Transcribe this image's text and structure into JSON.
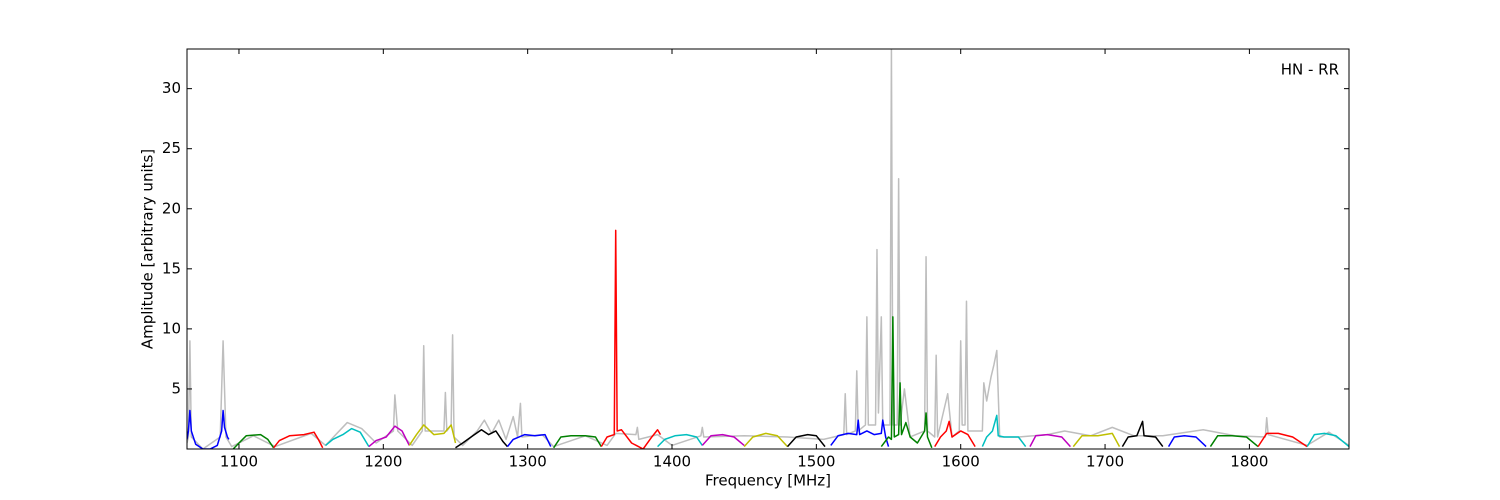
{
  "chart_data": {
    "type": "line",
    "xlabel": "Frequency [MHz]",
    "ylabel": "Amplitude [arbitrary units]",
    "annotation": "HN - RR",
    "xlim": [
      1064,
      1869
    ],
    "ylim": [
      0,
      33.3
    ],
    "xticks": [
      1100,
      1200,
      1300,
      1400,
      1500,
      1600,
      1700,
      1800
    ],
    "yticks": [
      5,
      10,
      15,
      20,
      25,
      30
    ],
    "series": [
      {
        "color": "#bebebe",
        "x": [
          1064,
          1065,
          1066,
          1067,
          1075,
          1087,
          1089,
          1091,
          1095,
          1110,
          1125,
          1150,
          1160,
          1175,
          1185,
          1195,
          1207,
          1208,
          1210,
          1220,
          1227,
          1228,
          1229,
          1242,
          1243,
          1244,
          1247,
          1248,
          1249,
          1255,
          1265,
          1270,
          1275,
          1280,
          1285,
          1290,
          1293,
          1295,
          1296,
          1310,
          1318,
          1340,
          1355,
          1361,
          1375,
          1376,
          1377,
          1390,
          1400,
          1420,
          1421,
          1422,
          1450,
          1480,
          1505,
          1519,
          1520,
          1521,
          1527,
          1528,
          1529,
          1534,
          1535,
          1536,
          1541,
          1542,
          1543,
          1545,
          1546,
          1551,
          1552,
          1553,
          1556,
          1557,
          1558,
          1561,
          1565,
          1575,
          1576,
          1577,
          1582,
          1583,
          1584,
          1591,
          1594,
          1599,
          1600,
          1601,
          1603,
          1604,
          1605,
          1615,
          1616,
          1618,
          1621,
          1623,
          1625,
          1627,
          1640,
          1660,
          1672,
          1690,
          1705,
          1720,
          1740,
          1768,
          1790,
          1811,
          1812,
          1813,
          1840,
          1855,
          1869
        ],
        "values": [
          0.5,
          1,
          9,
          1,
          0,
          1,
          9,
          1,
          0.2,
          1.1,
          0.2,
          1.3,
          0.3,
          2.2,
          1.7,
          0.5,
          1.5,
          4.5,
          1.5,
          0.3,
          1.5,
          8.6,
          1.5,
          1.5,
          4.7,
          1.5,
          2,
          9.5,
          1,
          0.3,
          1.5,
          2.4,
          1.3,
          2.4,
          0.8,
          2.7,
          1,
          3.8,
          1,
          1.2,
          0.2,
          1.1,
          0.3,
          1.3,
          1.2,
          1.8,
          0.8,
          1.2,
          0.3,
          1.1,
          1.8,
          1,
          1.1,
          1,
          0.8,
          1.2,
          4.6,
          1.2,
          1.5,
          6.5,
          1.5,
          2,
          11,
          2,
          2,
          16.6,
          3,
          11,
          2,
          2,
          33.3,
          2,
          2,
          22.5,
          2,
          5,
          1,
          1.5,
          16,
          1.5,
          1,
          7.8,
          1,
          4.6,
          1,
          1.5,
          9,
          2,
          2,
          12.3,
          1.5,
          1.5,
          5.5,
          4,
          6,
          7,
          8.2,
          1,
          1,
          1.2,
          1.5,
          1.1,
          1.8,
          1.1,
          1.1,
          1.6,
          1.1,
          1,
          2.6,
          1.2,
          0.3,
          1.4,
          0.3
        ]
      },
      {
        "color": "#0000ff",
        "x": [
          1064,
          1065,
          1066,
          1067,
          1070,
          1075,
          1080,
          1085,
          1088,
          1089,
          1090,
          1092,
          1093
        ],
        "values": [
          0.8,
          1.5,
          3.2,
          1.5,
          0.4,
          0,
          0,
          0.3,
          1.5,
          3.2,
          1.8,
          1,
          0.8
        ]
      },
      {
        "color": "#008000",
        "x": [
          1096,
          1100,
          1105,
          1115,
          1120,
          1124
        ],
        "values": [
          0,
          0.5,
          1.1,
          1.2,
          0.8,
          0.1
        ]
      },
      {
        "color": "#ff0000",
        "x": [
          1124,
          1128,
          1135,
          1145,
          1152,
          1155,
          1158
        ],
        "values": [
          0.1,
          0.7,
          1.1,
          1.2,
          1.4,
          0.8,
          0.1
        ]
      },
      {
        "color": "#00bfbf",
        "x": [
          1160,
          1165,
          1172,
          1178,
          1184,
          1190
        ],
        "values": [
          0.3,
          0.8,
          1.2,
          1.7,
          1.4,
          0.2
        ]
      },
      {
        "color": "#bf00bf",
        "x": [
          1190,
          1195,
          1202,
          1208,
          1213,
          1218
        ],
        "values": [
          0.2,
          0.7,
          1,
          1.9,
          1.5,
          0.3
        ]
      },
      {
        "color": "#bfbf00",
        "x": [
          1218,
          1223,
          1228,
          1235,
          1242,
          1247,
          1250
        ],
        "values": [
          0.3,
          1.2,
          2,
          1.2,
          1.3,
          2,
          0.5
        ]
      },
      {
        "color": "#000000",
        "x": [
          1250,
          1255,
          1262,
          1268,
          1273,
          1278,
          1283,
          1286
        ],
        "values": [
          0.1,
          0.5,
          1.1,
          1.6,
          1.2,
          1.5,
          0.6,
          0.2
        ]
      },
      {
        "color": "#0000ff",
        "x": [
          1286,
          1290,
          1298,
          1305,
          1312,
          1316
        ],
        "values": [
          0.2,
          0.8,
          1.2,
          1.1,
          1.2,
          0.2
        ]
      },
      {
        "color": "#008000",
        "x": [
          1318,
          1323,
          1330,
          1340,
          1347,
          1351
        ],
        "values": [
          0.1,
          1,
          1.1,
          1.1,
          1,
          0.2
        ]
      },
      {
        "color": "#ff0000",
        "x": [
          1351,
          1355,
          1360,
          1361,
          1362,
          1365,
          1372,
          1380,
          1386,
          1390,
          1392
        ],
        "values": [
          0.2,
          1,
          1.2,
          18.2,
          1.5,
          1.6,
          0.5,
          0,
          1,
          1.6,
          1.2
        ]
      },
      {
        "color": "#00bfbf",
        "x": [
          1390,
          1395,
          1402,
          1410,
          1417,
          1421
        ],
        "values": [
          0.2,
          0.8,
          1.1,
          1.2,
          1,
          0.3
        ]
      },
      {
        "color": "#bf00bf",
        "x": [
          1421,
          1427,
          1435,
          1443,
          1450
        ],
        "values": [
          0.3,
          1.1,
          1.2,
          1,
          0.3
        ]
      },
      {
        "color": "#bfbf00",
        "x": [
          1450,
          1456,
          1465,
          1473,
          1480
        ],
        "values": [
          0.2,
          1,
          1.3,
          1.1,
          0.2
        ]
      },
      {
        "color": "#000000",
        "x": [
          1480,
          1486,
          1494,
          1500,
          1506
        ],
        "values": [
          0.2,
          1,
          1.2,
          1.1,
          0.2
        ]
      },
      {
        "color": "#0000ff",
        "x": [
          1510,
          1515,
          1522,
          1528,
          1529,
          1530,
          1535,
          1540,
          1545,
          1546,
          1548,
          1550
        ],
        "values": [
          0.3,
          1.1,
          1.3,
          1.2,
          2.4,
          1.2,
          1.5,
          1.2,
          1.3,
          2.4,
          1,
          0.2
        ]
      },
      {
        "color": "#008000",
        "x": [
          1545,
          1550,
          1552,
          1553,
          1554,
          1557,
          1558,
          1559,
          1562,
          1565,
          1570,
          1575,
          1576,
          1577,
          1580
        ],
        "values": [
          0.2,
          1,
          0.8,
          11,
          1,
          1.2,
          5.5,
          1.2,
          2.2,
          1,
          0.5,
          1.5,
          3,
          1,
          0.1
        ]
      },
      {
        "color": "#ff0000",
        "x": [
          1582,
          1586,
          1590,
          1592,
          1594,
          1600,
          1605,
          1610
        ],
        "values": [
          0.2,
          1,
          1.5,
          2.3,
          1,
          1.5,
          1.2,
          0.2
        ]
      },
      {
        "color": "#00bfbf",
        "x": [
          1615,
          1618,
          1622,
          1625,
          1626,
          1630,
          1640,
          1645
        ],
        "values": [
          0.2,
          1,
          1.5,
          2.8,
          1.1,
          1,
          1,
          0.2
        ]
      },
      {
        "color": "#bf00bf",
        "x": [
          1648,
          1652,
          1660,
          1670,
          1676
        ],
        "values": [
          0.2,
          1.1,
          1.2,
          1,
          0.2
        ]
      },
      {
        "color": "#bfbf00",
        "x": [
          1678,
          1684,
          1695,
          1705,
          1710
        ],
        "values": [
          0.2,
          1.1,
          1.1,
          1.3,
          0.2
        ]
      },
      {
        "color": "#000000",
        "x": [
          1712,
          1716,
          1722,
          1726,
          1727,
          1735,
          1740
        ],
        "values": [
          0.2,
          1,
          1.1,
          2.3,
          1.1,
          1,
          0.2
        ]
      },
      {
        "color": "#0000ff",
        "x": [
          1744,
          1748,
          1755,
          1763,
          1770
        ],
        "values": [
          0.2,
          1,
          1.1,
          1,
          0.2
        ]
      },
      {
        "color": "#008000",
        "x": [
          1773,
          1778,
          1788,
          1798,
          1806
        ],
        "values": [
          0.2,
          1.1,
          1.1,
          1,
          0.2
        ]
      },
      {
        "color": "#ff0000",
        "x": [
          1806,
          1812,
          1820,
          1830,
          1840
        ],
        "values": [
          0.2,
          1.3,
          1.3,
          1,
          0.2
        ]
      },
      {
        "color": "#00bfbf",
        "x": [
          1840,
          1845,
          1852,
          1860,
          1869
        ],
        "values": [
          0.2,
          1.2,
          1.3,
          1.1,
          0.2
        ]
      }
    ]
  }
}
